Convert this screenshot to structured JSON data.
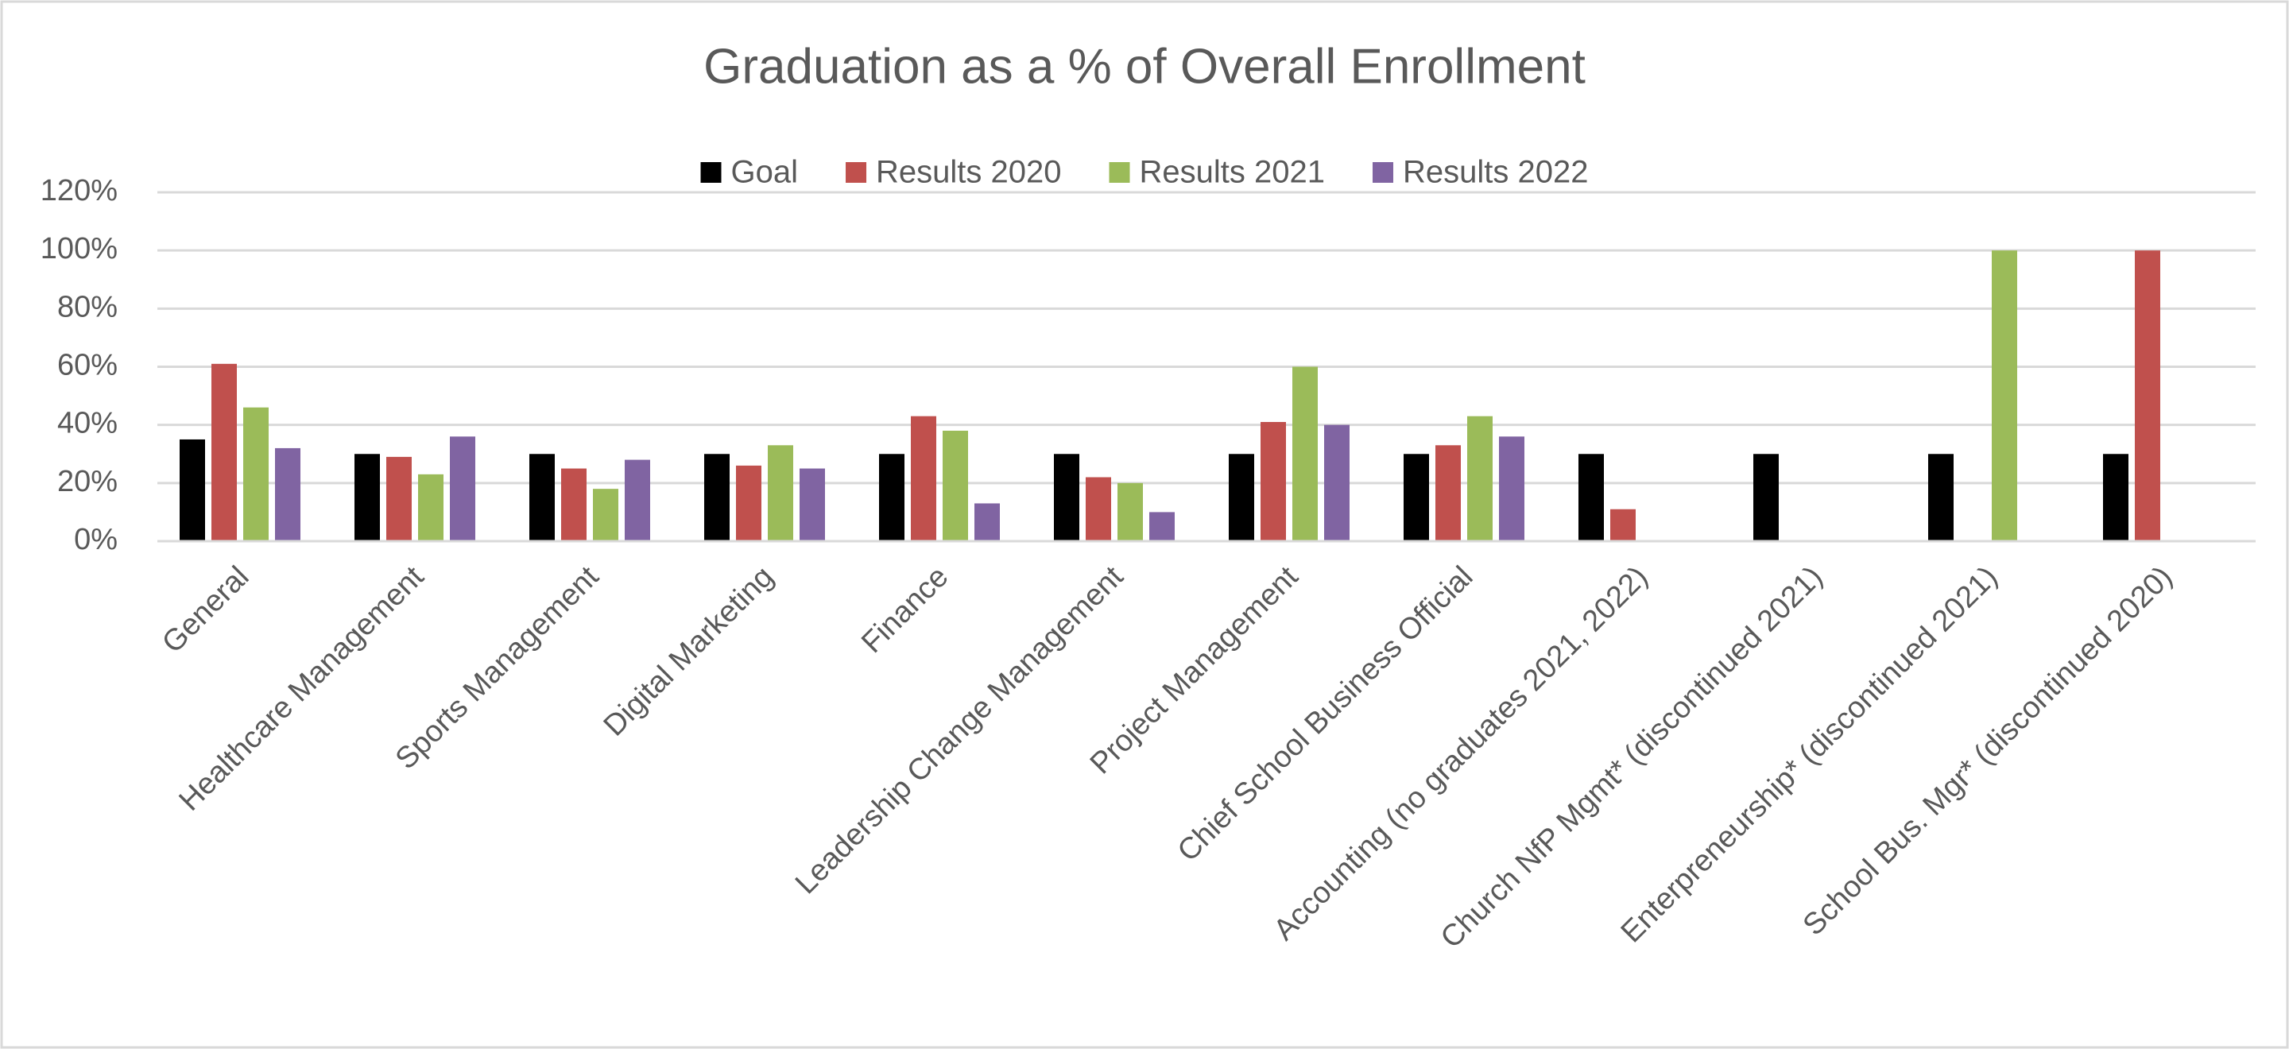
{
  "chart_data": {
    "type": "bar",
    "title": "Graduation as a % of Overall Enrollment",
    "categories": [
      "General",
      "Healthcare Management",
      "Sports Management",
      "Digital Marketing",
      "Finance",
      "Leadership Change Management",
      "Project Management",
      "Chief School Business Official",
      "Accounting (no graduates 2021, 2022)",
      "Church NfP Mgmt* (discontinued 2021)",
      "Enterpreneurship* (discontinued 2021)",
      "School Bus. Mgr* (discontinued 2020)"
    ],
    "series": [
      {
        "name": "Goal",
        "color": "#000000",
        "values": [
          35,
          30,
          30,
          30,
          30,
          30,
          30,
          30,
          30,
          30,
          30,
          30
        ]
      },
      {
        "name": "Results 2020",
        "color": "#c0504d",
        "values": [
          61,
          29,
          25,
          26,
          43,
          22,
          41,
          33,
          11,
          null,
          null,
          100
        ]
      },
      {
        "name": "Results 2021",
        "color": "#9bbb59",
        "values": [
          46,
          23,
          18,
          33,
          38,
          20,
          60,
          43,
          null,
          null,
          100,
          null
        ]
      },
      {
        "name": "Results 2022",
        "color": "#8064a2",
        "values": [
          32,
          36,
          28,
          25,
          13,
          10,
          40,
          36,
          null,
          null,
          null,
          null
        ]
      }
    ],
    "ylim": [
      0,
      120
    ],
    "yticks": [
      {
        "value": 0,
        "label": "0%"
      },
      {
        "value": 20,
        "label": "20%"
      },
      {
        "value": 40,
        "label": "40%"
      },
      {
        "value": 60,
        "label": "60%"
      },
      {
        "value": 80,
        "label": "80%"
      },
      {
        "value": 100,
        "label": "100%"
      },
      {
        "value": 120,
        "label": "120%"
      }
    ],
    "grid": true,
    "legend": "top"
  }
}
